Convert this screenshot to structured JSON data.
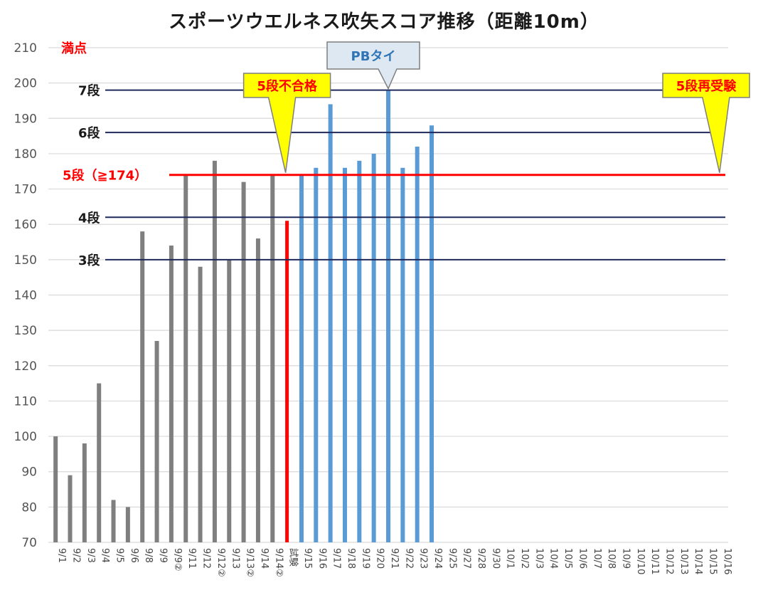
{
  "chart_data": {
    "type": "bar",
    "title": "スポーツウエルネス吹矢スコア推移（距離10m）",
    "xlabel": "",
    "ylabel": "",
    "ylim": [
      70,
      210
    ],
    "yticks": [
      70,
      80,
      90,
      100,
      110,
      120,
      130,
      140,
      150,
      160,
      170,
      180,
      190,
      200,
      210
    ],
    "grid": true,
    "categories": [
      "9/1",
      "9/2",
      "9/3",
      "9/4",
      "9/5",
      "9/6",
      "9/8",
      "9/9",
      "9/9②",
      "9/11",
      "9/12",
      "9/12②",
      "9/13",
      "9/13②",
      "9/14",
      "9/14②",
      "試験",
      "9/15",
      "9/16",
      "9/17",
      "9/18",
      "9/19",
      "9/20",
      "9/21",
      "9/22",
      "9/23",
      "9/24",
      "9/25",
      "9/27",
      "9/28",
      "9/30",
      "10/1",
      "10/2",
      "10/3",
      "10/4",
      "10/5",
      "10/6",
      "10/7",
      "10/8",
      "10/9",
      "10/10",
      "10/11",
      "10/12",
      "10/13",
      "10/14",
      "10/15",
      "10/16"
    ],
    "values": [
      100,
      89,
      98,
      115,
      82,
      80,
      158,
      127,
      154,
      174,
      148,
      178,
      150,
      172,
      156,
      174,
      161,
      174,
      176,
      194,
      176,
      178,
      180,
      198,
      176,
      182,
      188,
      null,
      null,
      null,
      null,
      null,
      null,
      null,
      null,
      null,
      null,
      null,
      null,
      null,
      null,
      null,
      null,
      null,
      null,
      null,
      null
    ],
    "colors": {
      "before": "#7f7f7f",
      "exam": "#ff0000",
      "after": "#5b9bd5",
      "level_line": "#1f2a5a",
      "pass_line": "#ff0000",
      "grid": "#d9d9d9",
      "callout_fill": "#ffff00",
      "callout_text": "#ff0000",
      "pb_fill": "#dee8f3",
      "pb_text": "#2e75b6"
    },
    "reference_lines": [
      {
        "label": "満点",
        "value": 210,
        "line": false,
        "color": "#ff0000"
      },
      {
        "label": "7段",
        "value": 198,
        "line": true,
        "color": "#1a1a1a"
      },
      {
        "label": "6段",
        "value": 186,
        "line": true,
        "color": "#1a1a1a"
      },
      {
        "label": "5段（≧174）",
        "value": 174,
        "line": true,
        "color": "#ff0000"
      },
      {
        "label": "4段",
        "value": 162,
        "line": true,
        "color": "#1a1a1a"
      },
      {
        "label": "3段",
        "value": 150,
        "line": true,
        "color": "#1a1a1a"
      }
    ],
    "annotations": [
      {
        "text": "5段不合格",
        "category": "試験",
        "style": "yellow"
      },
      {
        "text": "PBタイ",
        "category": "9/21",
        "style": "blue"
      },
      {
        "text": "5段再受験",
        "category": "10/16",
        "style": "yellow"
      }
    ]
  }
}
